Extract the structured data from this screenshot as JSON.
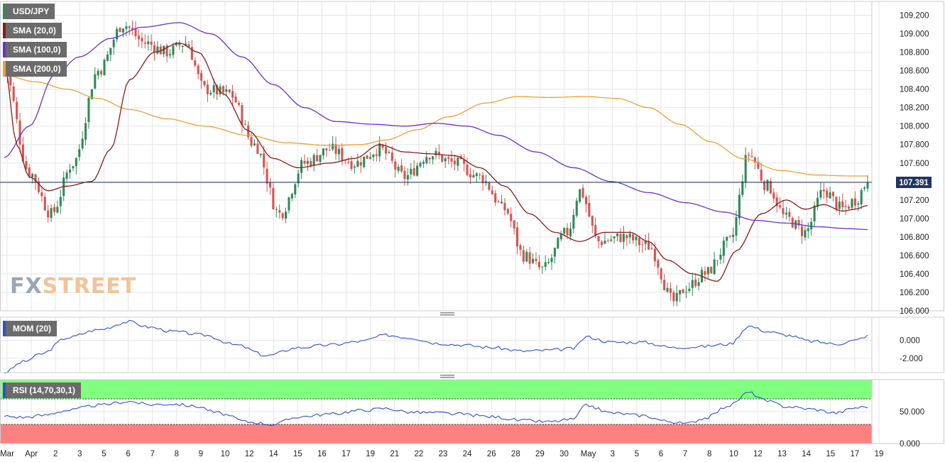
{
  "instrument": "USD/JPY",
  "last_price_label": "107.391",
  "indicators": {
    "sma20": "SMA (20,0)",
    "sma100": "SMA (100,0)",
    "sma200": "SMA (200,0)",
    "mom": "MOM (20)",
    "rsi": "RSI (14,70,30,1)"
  },
  "watermark": {
    "a": "FX",
    "b": "STREET"
  },
  "colors": {
    "bull": "#2e8b57",
    "bear": "#d9534f",
    "sma20": "#8b1a1a",
    "sma100": "#6a2fd1",
    "sma200": "#f0a030",
    "mom": "#3050d0",
    "rsi": "#3050d0",
    "rsi_overbought": "#80ff80",
    "rsi_oversold": "#ff8080",
    "last_price_bg": "#1f3566",
    "grid": "#e6e6e6"
  },
  "chart_data": [
    {
      "type": "candlestick",
      "title": "USD/JPY",
      "ylim": [
        106.0,
        109.35
      ],
      "y_ticks": [
        "109.200",
        "109.000",
        "108.800",
        "108.600",
        "108.400",
        "108.200",
        "108.000",
        "107.800",
        "107.600",
        "107.400",
        "107.200",
        "107.000",
        "106.800",
        "106.600",
        "106.400",
        "106.200",
        "106.000"
      ],
      "x_ticks": [
        "Mar",
        "Apr",
        "2",
        "3",
        "5",
        "6",
        "7",
        "8",
        "9",
        "10",
        "12",
        "14",
        "15",
        "16",
        "17",
        "19",
        "21",
        "22",
        "23",
        "24",
        "26",
        "28",
        "29",
        "30",
        "May",
        "3",
        "5",
        "6",
        "7",
        "8",
        "10",
        "12",
        "13",
        "14",
        "15",
        "17",
        "19"
      ],
      "last_price": 107.391,
      "waypoints": [
        {
          "x": 0,
          "close": 108.6
        },
        {
          "x": 8,
          "close": 107.5
        },
        {
          "x": 15,
          "close": 107.05
        },
        {
          "x": 22,
          "close": 107.6
        },
        {
          "x": 30,
          "close": 108.6
        },
        {
          "x": 38,
          "close": 109.1
        },
        {
          "x": 45,
          "close": 108.9
        },
        {
          "x": 52,
          "close": 108.8
        },
        {
          "x": 58,
          "close": 108.9
        },
        {
          "x": 64,
          "close": 108.4
        },
        {
          "x": 72,
          "close": 108.35
        },
        {
          "x": 80,
          "close": 107.8
        },
        {
          "x": 88,
          "close": 107.05
        },
        {
          "x": 96,
          "close": 107.6
        },
        {
          "x": 104,
          "close": 107.75
        },
        {
          "x": 112,
          "close": 107.6
        },
        {
          "x": 120,
          "close": 107.75
        },
        {
          "x": 128,
          "close": 107.45
        },
        {
          "x": 136,
          "close": 107.7
        },
        {
          "x": 144,
          "close": 107.6
        },
        {
          "x": 152,
          "close": 107.45
        },
        {
          "x": 160,
          "close": 107.1
        },
        {
          "x": 166,
          "close": 106.6
        },
        {
          "x": 172,
          "close": 106.45
        },
        {
          "x": 180,
          "close": 106.85
        },
        {
          "x": 184,
          "close": 107.3
        },
        {
          "x": 190,
          "close": 106.75
        },
        {
          "x": 198,
          "close": 106.8
        },
        {
          "x": 206,
          "close": 106.7
        },
        {
          "x": 214,
          "close": 106.1
        },
        {
          "x": 218,
          "close": 106.25
        },
        {
          "x": 224,
          "close": 106.4
        },
        {
          "x": 232,
          "close": 106.75
        },
        {
          "x": 238,
          "close": 107.7
        },
        {
          "x": 244,
          "close": 107.35
        },
        {
          "x": 250,
          "close": 107.0
        },
        {
          "x": 256,
          "close": 106.85
        },
        {
          "x": 262,
          "close": 107.3
        },
        {
          "x": 268,
          "close": 107.1
        },
        {
          "x": 272,
          "close": 107.2
        },
        {
          "x": 276,
          "close": 107.39
        }
      ],
      "sma20": [
        [
          0,
          108.7
        ],
        [
          4,
          107.8
        ],
        [
          8,
          107.45
        ],
        [
          14,
          107.3
        ],
        [
          20,
          107.35
        ],
        [
          28,
          107.4
        ],
        [
          34,
          107.75
        ],
        [
          40,
          108.5
        ],
        [
          48,
          108.8
        ],
        [
          56,
          108.9
        ],
        [
          62,
          108.8
        ],
        [
          70,
          108.35
        ],
        [
          78,
          107.95
        ],
        [
          86,
          107.65
        ],
        [
          94,
          107.55
        ],
        [
          104,
          107.6
        ],
        [
          112,
          107.65
        ],
        [
          120,
          107.8
        ],
        [
          128,
          107.72
        ],
        [
          136,
          107.7
        ],
        [
          144,
          107.68
        ],
        [
          152,
          107.55
        ],
        [
          160,
          107.35
        ],
        [
          168,
          107.05
        ],
        [
          176,
          106.85
        ],
        [
          184,
          106.75
        ],
        [
          192,
          106.85
        ],
        [
          200,
          106.85
        ],
        [
          206,
          106.75
        ],
        [
          212,
          106.55
        ],
        [
          220,
          106.4
        ],
        [
          228,
          106.32
        ],
        [
          234,
          106.65
        ],
        [
          242,
          107.05
        ],
        [
          250,
          107.2
        ],
        [
          256,
          107.1
        ],
        [
          262,
          107.15
        ],
        [
          268,
          107.08
        ],
        [
          272,
          107.1
        ],
        [
          276,
          107.14
        ]
      ],
      "sma100": [
        [
          0,
          107.66
        ],
        [
          8,
          108.0
        ],
        [
          16,
          108.55
        ],
        [
          24,
          108.75
        ],
        [
          34,
          108.95
        ],
        [
          44,
          109.07
        ],
        [
          56,
          109.12
        ],
        [
          66,
          109.0
        ],
        [
          76,
          108.75
        ],
        [
          86,
          108.45
        ],
        [
          96,
          108.2
        ],
        [
          106,
          108.05
        ],
        [
          118,
          108.02
        ],
        [
          128,
          108.0
        ],
        [
          138,
          108.03
        ],
        [
          148,
          108.0
        ],
        [
          158,
          107.9
        ],
        [
          170,
          107.72
        ],
        [
          182,
          107.55
        ],
        [
          194,
          107.4
        ],
        [
          206,
          107.28
        ],
        [
          218,
          107.17
        ],
        [
          230,
          107.07
        ],
        [
          240,
          106.98
        ],
        [
          250,
          106.95
        ],
        [
          260,
          106.91
        ],
        [
          270,
          106.89
        ],
        [
          276,
          106.88
        ]
      ],
      "sma200": [
        [
          0,
          108.55
        ],
        [
          10,
          108.48
        ],
        [
          20,
          108.4
        ],
        [
          30,
          108.3
        ],
        [
          40,
          108.18
        ],
        [
          52,
          108.08
        ],
        [
          64,
          108.0
        ],
        [
          78,
          107.9
        ],
        [
          90,
          107.82
        ],
        [
          104,
          107.79
        ],
        [
          114,
          107.8
        ],
        [
          122,
          107.85
        ],
        [
          132,
          107.96
        ],
        [
          142,
          108.1
        ],
        [
          154,
          108.25
        ],
        [
          164,
          108.32
        ],
        [
          174,
          108.31
        ],
        [
          186,
          108.32
        ],
        [
          196,
          108.3
        ],
        [
          206,
          108.2
        ],
        [
          216,
          108.02
        ],
        [
          226,
          107.83
        ],
        [
          236,
          107.65
        ],
        [
          248,
          107.52
        ],
        [
          260,
          107.47
        ],
        [
          270,
          107.46
        ],
        [
          276,
          107.46
        ]
      ]
    },
    {
      "type": "line",
      "title": "MOM (20)",
      "ylim": [
        -3.6,
        2.6
      ],
      "y_ticks": [
        "0.000",
        "-2.000"
      ],
      "series": [
        {
          "name": "MOM (20)",
          "points": [
            [
              0,
              -3.6
            ],
            [
              6,
              -2.4
            ],
            [
              12,
              -1.5
            ],
            [
              20,
              0.3
            ],
            [
              30,
              1.2
            ],
            [
              40,
              2.1
            ],
            [
              46,
              1.5
            ],
            [
              54,
              1.0
            ],
            [
              64,
              0.6
            ],
            [
              74,
              -0.5
            ],
            [
              84,
              -1.7
            ],
            [
              94,
              -0.8
            ],
            [
              104,
              -0.5
            ],
            [
              114,
              -0.1
            ],
            [
              122,
              0.6
            ],
            [
              130,
              0.3
            ],
            [
              138,
              -0.3
            ],
            [
              146,
              -0.5
            ],
            [
              156,
              -0.8
            ],
            [
              166,
              -1.2
            ],
            [
              174,
              -1.1
            ],
            [
              182,
              -0.9
            ],
            [
              186,
              0.4
            ],
            [
              194,
              -0.2
            ],
            [
              204,
              -0.2
            ],
            [
              214,
              -0.8
            ],
            [
              222,
              -0.7
            ],
            [
              232,
              -0.4
            ],
            [
              238,
              1.6
            ],
            [
              244,
              1.0
            ],
            [
              250,
              0.6
            ],
            [
              258,
              -0.1
            ],
            [
              266,
              -0.4
            ],
            [
              272,
              0.0
            ],
            [
              276,
              0.5
            ]
          ]
        }
      ]
    },
    {
      "type": "line",
      "title": "RSI (14,70,30,1)",
      "ylim": [
        0,
        100
      ],
      "y_ticks": [
        "50.000",
        "0.000"
      ],
      "overbought": 70,
      "oversold": 30,
      "series": [
        {
          "name": "RSI (14,70,30,1)",
          "points": [
            [
              0,
              43
            ],
            [
              6,
              41
            ],
            [
              12,
              44
            ],
            [
              20,
              52
            ],
            [
              30,
              60
            ],
            [
              40,
              66
            ],
            [
              46,
              61
            ],
            [
              54,
              62
            ],
            [
              62,
              58
            ],
            [
              68,
              48
            ],
            [
              78,
              34
            ],
            [
              86,
              30
            ],
            [
              94,
              42
            ],
            [
              104,
              46
            ],
            [
              114,
              52
            ],
            [
              122,
              55
            ],
            [
              130,
              49
            ],
            [
              138,
              48
            ],
            [
              146,
              46
            ],
            [
              156,
              42
            ],
            [
              166,
              36
            ],
            [
              174,
              34
            ],
            [
              182,
              38
            ],
            [
              186,
              60
            ],
            [
              194,
              48
            ],
            [
              204,
              44
            ],
            [
              212,
              35
            ],
            [
              218,
              31
            ],
            [
              224,
              40
            ],
            [
              232,
              60
            ],
            [
              238,
              80
            ],
            [
              244,
              66
            ],
            [
              250,
              58
            ],
            [
              258,
              54
            ],
            [
              266,
              48
            ],
            [
              272,
              56
            ],
            [
              276,
              58
            ]
          ]
        }
      ]
    }
  ]
}
